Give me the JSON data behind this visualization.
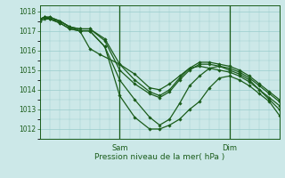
{
  "xlabel": "Pression niveau de la mer( hPa )",
  "ylim": [
    1011.5,
    1018.3
  ],
  "xlim": [
    0,
    48
  ],
  "yticks": [
    1012,
    1013,
    1014,
    1015,
    1016,
    1017,
    1018
  ],
  "sam_x": 16,
  "dim_x": 38,
  "xtick_positions": [
    16,
    38
  ],
  "xtick_labels": [
    "Sam",
    "Dim"
  ],
  "bg_color": "#cce8e8",
  "line_color": "#1a5c1a",
  "grid_color": "#99cccc",
  "series": [
    {
      "x": [
        0,
        1,
        2,
        4,
        6,
        8,
        10,
        13,
        16,
        19,
        22,
        24,
        26,
        28,
        30,
        32,
        34,
        36,
        38,
        40,
        42,
        44,
        46,
        48
      ],
      "y": [
        1017.6,
        1017.7,
        1017.6,
        1017.4,
        1017.1,
        1017.0,
        1017.0,
        1016.2,
        1013.7,
        1012.6,
        1012.0,
        1012.0,
        1012.2,
        1012.5,
        1013.0,
        1013.4,
        1014.1,
        1014.6,
        1014.7,
        1014.5,
        1014.2,
        1013.8,
        1013.4,
        1012.7
      ]
    },
    {
      "x": [
        0,
        1,
        2,
        4,
        6,
        8,
        10,
        13,
        16,
        19,
        22,
        24,
        26,
        28,
        30,
        32,
        34,
        36,
        38,
        40,
        42,
        44,
        46,
        48
      ],
      "y": [
        1017.6,
        1017.7,
        1017.6,
        1017.4,
        1017.1,
        1017.0,
        1017.0,
        1016.2,
        1014.5,
        1013.5,
        1012.6,
        1012.2,
        1012.5,
        1013.3,
        1014.2,
        1014.7,
        1015.1,
        1015.2,
        1015.0,
        1014.8,
        1014.5,
        1014.0,
        1013.5,
        1013.0
      ]
    },
    {
      "x": [
        0,
        1,
        2,
        4,
        6,
        8,
        10,
        13,
        16,
        19,
        22,
        24,
        26,
        28,
        30,
        32,
        34,
        36,
        38,
        40,
        42,
        44,
        46,
        48
      ],
      "y": [
        1017.6,
        1017.7,
        1017.7,
        1017.5,
        1017.2,
        1017.1,
        1017.1,
        1016.5,
        1015.0,
        1014.3,
        1013.8,
        1013.6,
        1013.9,
        1014.5,
        1015.0,
        1015.3,
        1015.3,
        1015.2,
        1015.1,
        1014.9,
        1014.6,
        1014.2,
        1013.8,
        1013.4
      ]
    },
    {
      "x": [
        0,
        1,
        2,
        4,
        6,
        8,
        10,
        13,
        16,
        19,
        22,
        24,
        26,
        28,
        30,
        32,
        34,
        36,
        38,
        40,
        42,
        44,
        46,
        48
      ],
      "y": [
        1017.6,
        1017.7,
        1017.7,
        1017.5,
        1017.2,
        1017.1,
        1017.1,
        1016.6,
        1015.3,
        1014.5,
        1013.9,
        1013.7,
        1014.0,
        1014.6,
        1015.1,
        1015.4,
        1015.4,
        1015.3,
        1015.2,
        1015.0,
        1014.7,
        1014.3,
        1013.9,
        1013.5
      ]
    },
    {
      "x": [
        0,
        1,
        2,
        4,
        6,
        8,
        10,
        12,
        16,
        19,
        22,
        24,
        26,
        28,
        30,
        32,
        34,
        36,
        38,
        40,
        42,
        44,
        46,
        48
      ],
      "y": [
        1017.5,
        1017.6,
        1017.6,
        1017.5,
        1017.2,
        1017.0,
        1016.1,
        1015.8,
        1015.3,
        1014.8,
        1014.1,
        1014.0,
        1014.3,
        1014.7,
        1015.1,
        1015.2,
        1015.1,
        1015.0,
        1014.9,
        1014.7,
        1014.4,
        1014.0,
        1013.6,
        1013.2
      ]
    }
  ]
}
